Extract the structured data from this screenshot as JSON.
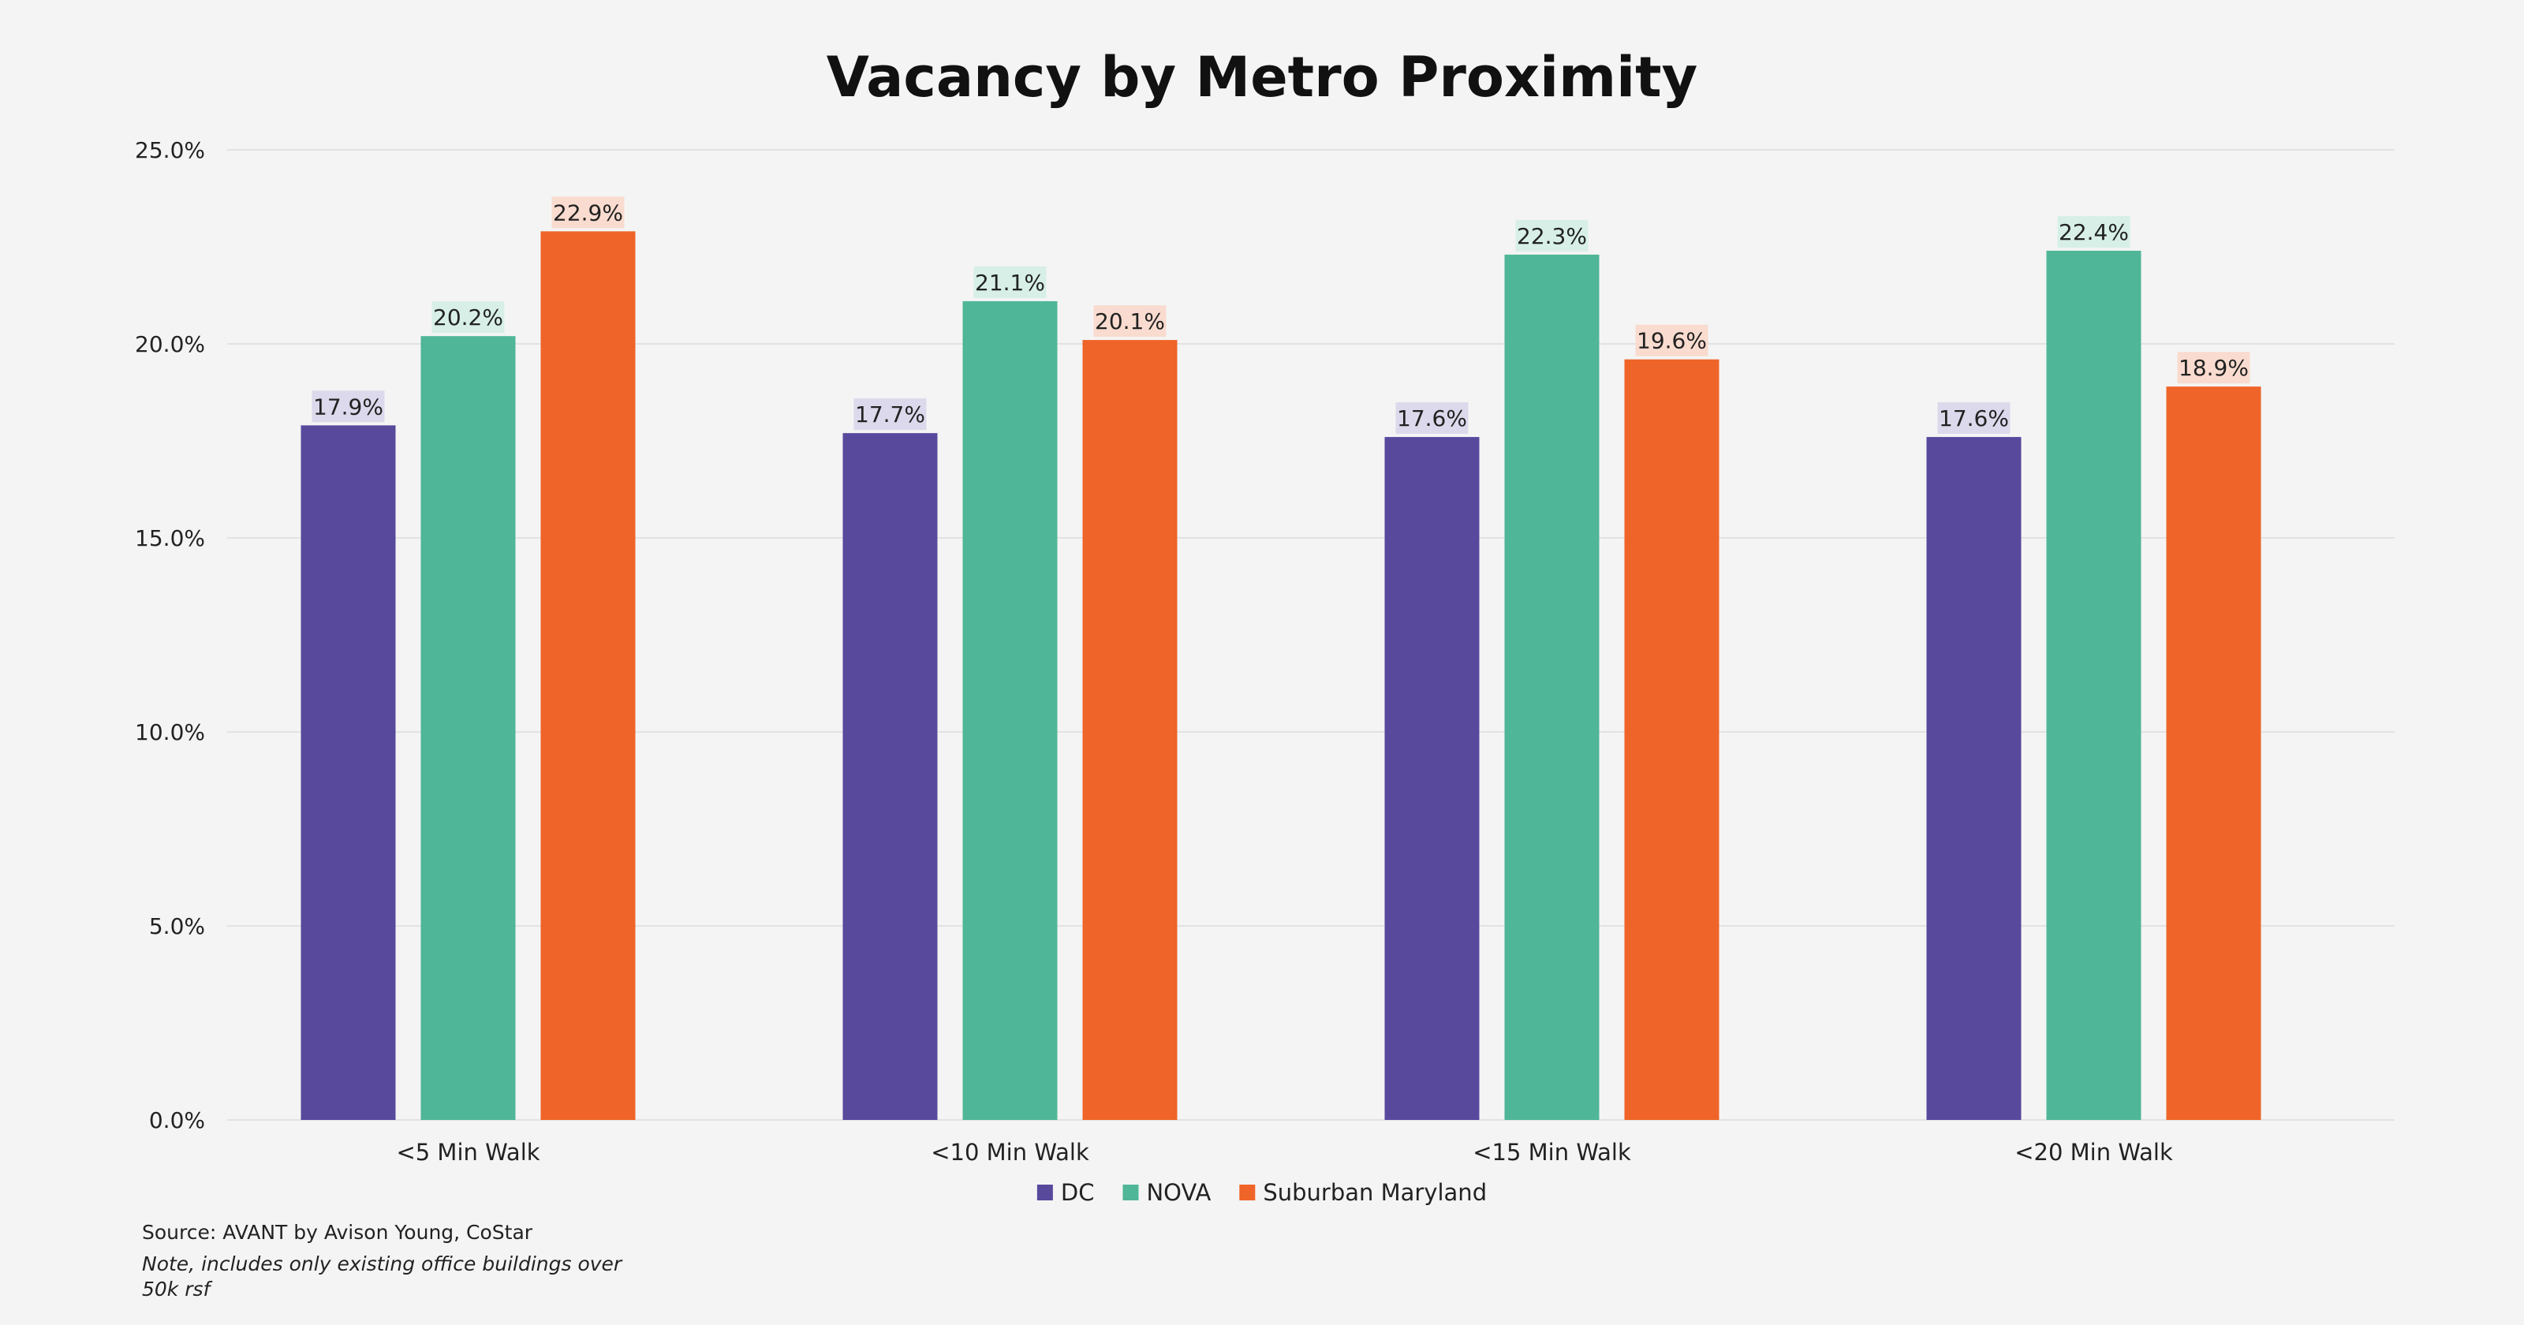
{
  "chart_data": {
    "type": "bar",
    "title": "Vacancy by Metro Proximity",
    "categories": [
      "<5 Min Walk",
      "<10 Min Walk",
      "<15 Min Walk",
      "<20 Min Walk"
    ],
    "series": [
      {
        "name": "DC",
        "color": "#58499d",
        "label_bg": "#dcd9ec",
        "values": [
          17.9,
          17.7,
          17.6,
          17.6
        ],
        "labels": [
          "17.9%",
          "17.7%",
          "17.6%",
          "17.6%"
        ]
      },
      {
        "name": "NOVA",
        "color": "#4fb697",
        "label_bg": "#d7efe7",
        "values": [
          20.2,
          21.1,
          22.3,
          22.4
        ],
        "labels": [
          "20.2%",
          "21.1%",
          "22.3%",
          "22.4%"
        ]
      },
      {
        "name": "Suburban Maryland",
        "color": "#ef6428",
        "label_bg": "#f9dccf",
        "values": [
          22.9,
          20.1,
          19.6,
          18.9
        ],
        "labels": [
          "22.9%",
          "20.1%",
          "19.6%",
          "18.9%"
        ]
      }
    ],
    "ylim": [
      0,
      25
    ],
    "yticks": [
      "0.0%",
      "5.0%",
      "10.0%",
      "15.0%",
      "20.0%",
      "25.0%"
    ],
    "grid": true,
    "legend_position": "bottom"
  },
  "footer": {
    "source": "Source: AVANT by Avison Young, CoStar",
    "note_line1": "Note, includes only existing office buildings over",
    "note_line2": "50k rsf"
  }
}
